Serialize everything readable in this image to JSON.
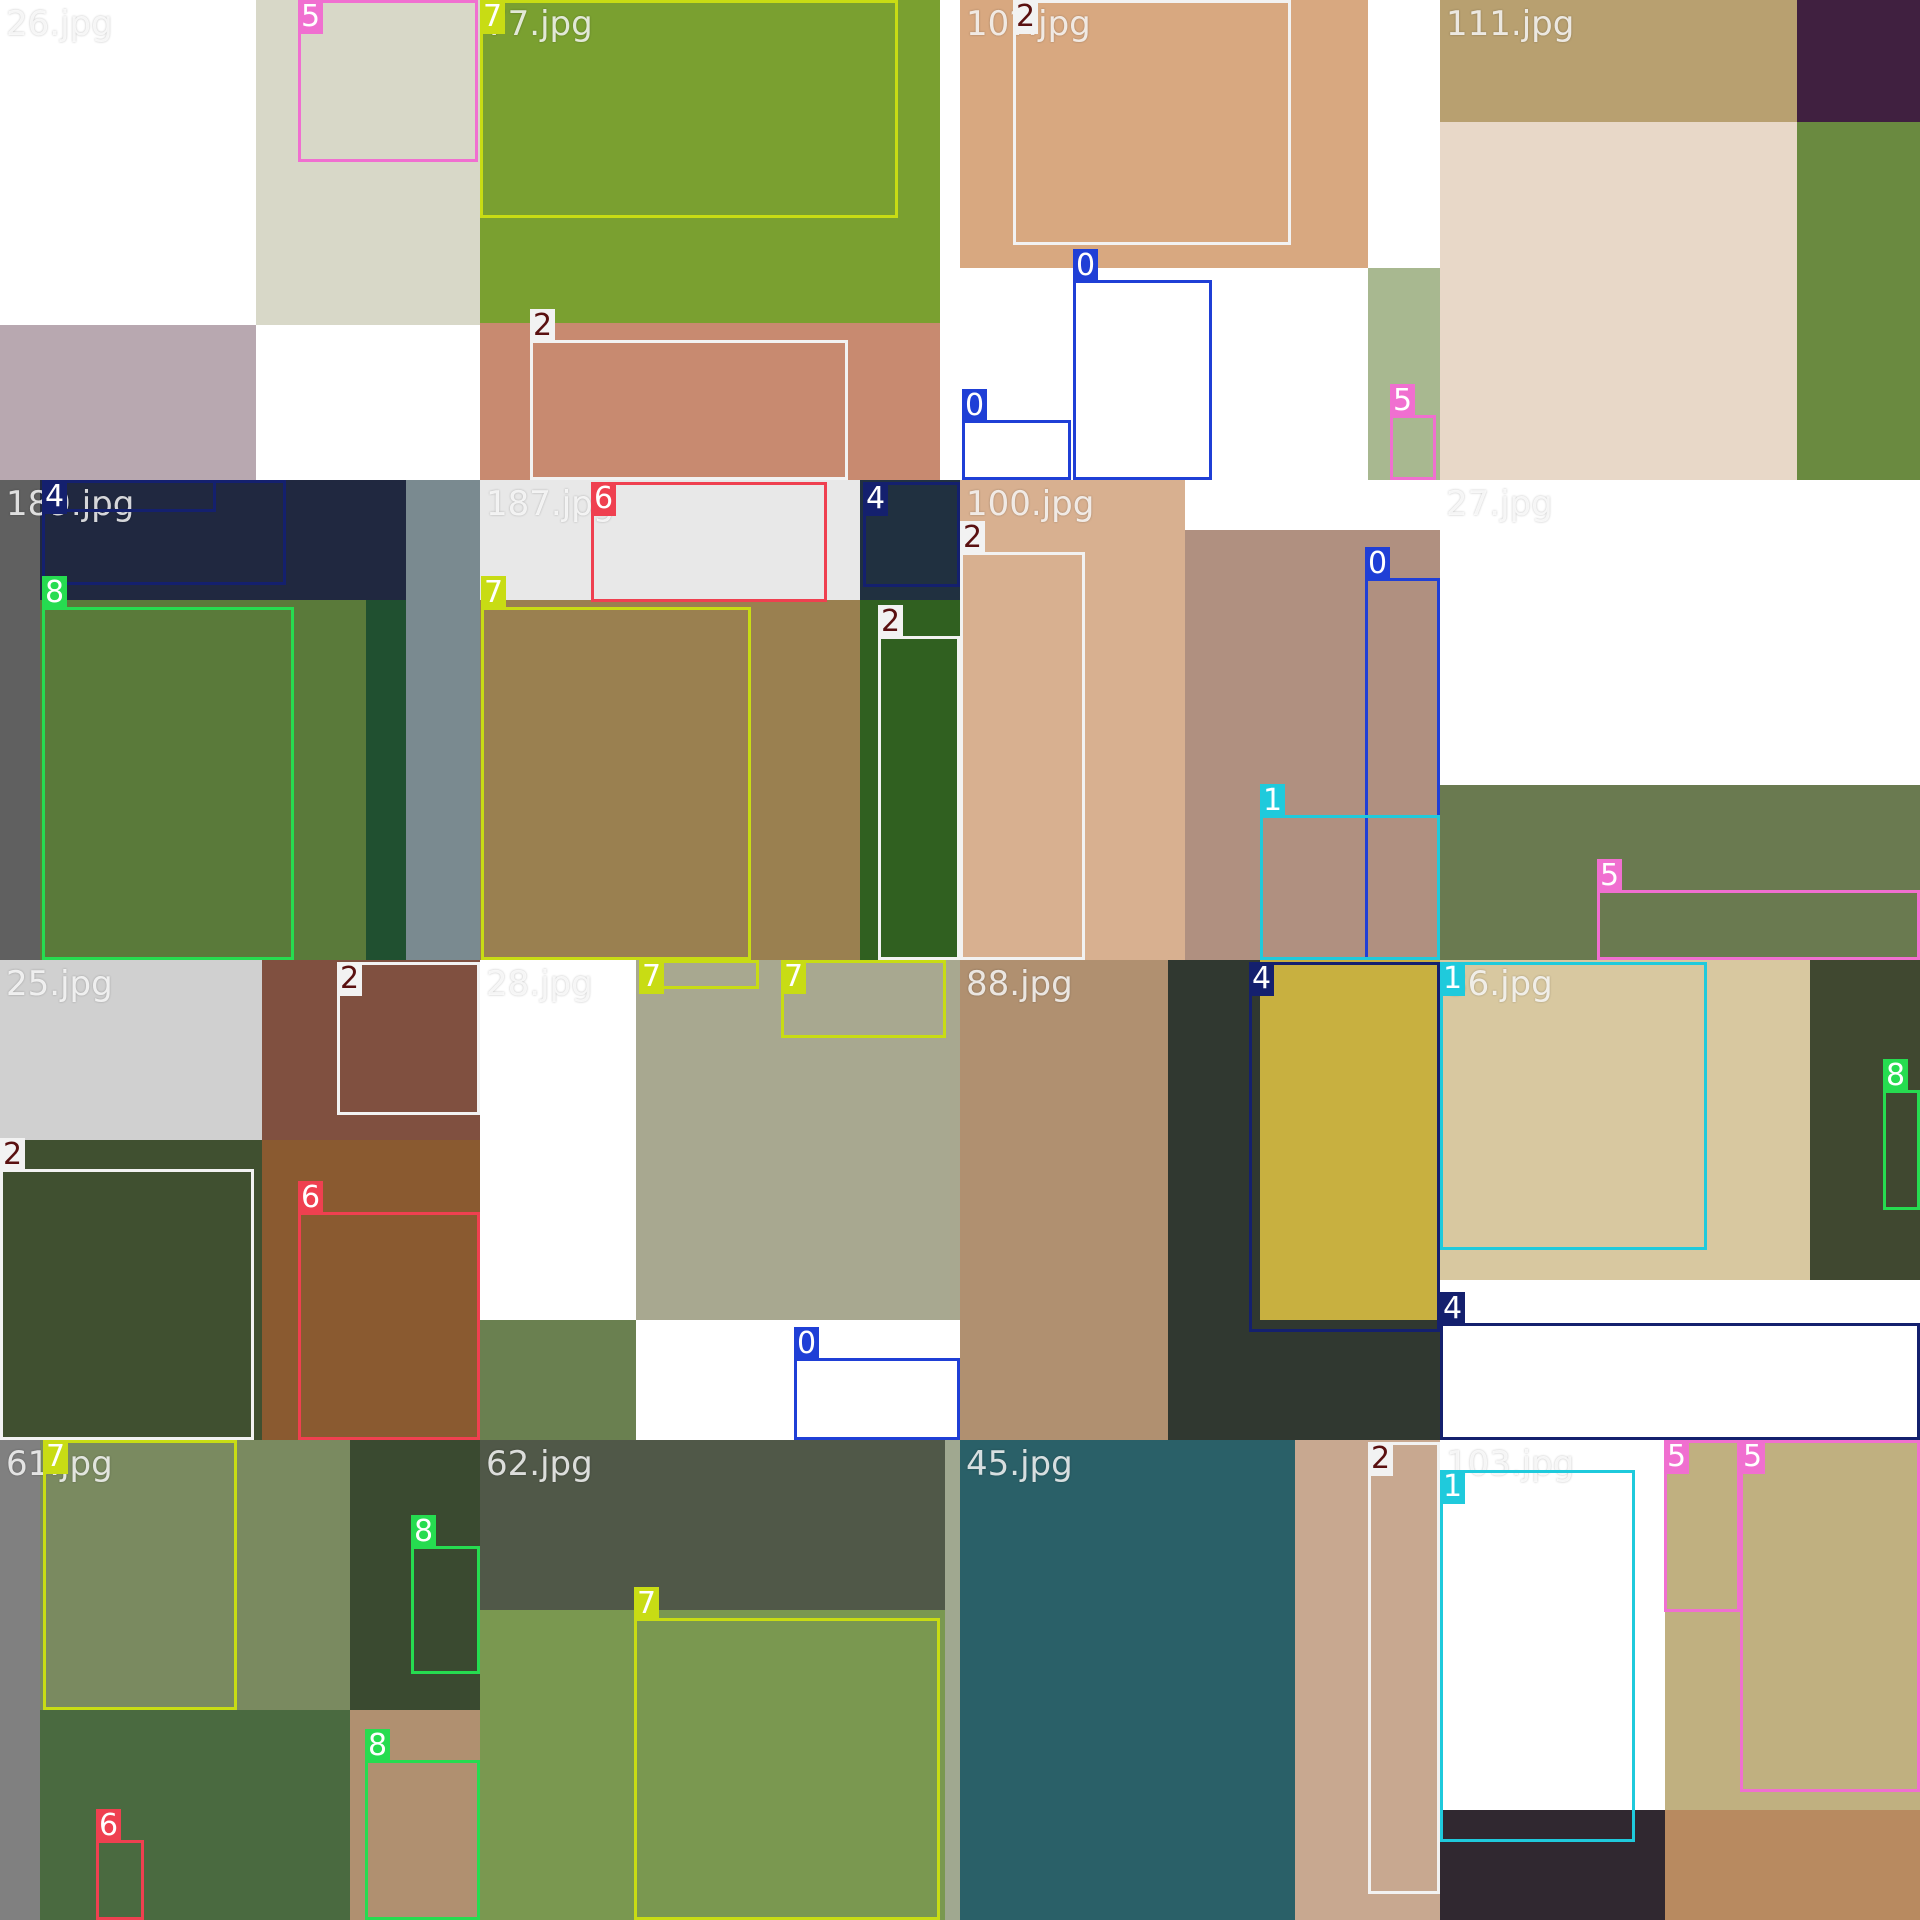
{
  "class_colors": {
    "0": "#1f3fd6",
    "1": "#1fcadc",
    "2": "#f2f2f2",
    "4": "#14206e",
    "5": "#f06fd0",
    "6": "#ef4050",
    "7": "#c8dc14",
    "8": "#26dc50"
  },
  "label_text_colors": {
    "2": "#5a1010"
  },
  "tiles": [
    {
      "title": "26.jpg"
    },
    {
      "title": "77.jpg"
    },
    {
      "title": "10?.jpg"
    },
    {
      "title": "111.jpg"
    },
    {
      "title": "189.jpg"
    },
    {
      "title": "187.jpg"
    },
    {
      "title": "100.jpg"
    },
    {
      "title": "27.jpg"
    },
    {
      "title": "25.jpg"
    },
    {
      "title": "28.jpg"
    },
    {
      "title": "88.jpg"
    },
    {
      "title": "36.jpg"
    },
    {
      "title": "61.jpg"
    },
    {
      "title": "62.jpg"
    },
    {
      "title": "45.jpg"
    },
    {
      "title": "103.jpg"
    }
  ],
  "tile_regions": [
    [
      {
        "color": "#ffffff"
      },
      {
        "color": "#d8d8c8"
      },
      {
        "color": "#b8a8b0"
      },
      {
        "color": "#ffffff"
      }
    ],
    [
      {
        "color": "#7aa030"
      },
      {
        "color": "#c88a70"
      }
    ],
    [
      {
        "color": "#d8a880"
      },
      {
        "color": "#ffffff"
      },
      {
        "color": "#a8b890"
      }
    ],
    [
      {
        "color": "#b8a070"
      },
      {
        "color": "#402040"
      },
      {
        "color": "#e8d8c8"
      },
      {
        "color": "#6a8a40"
      }
    ],
    [
      {
        "color": "#606060"
      },
      {
        "color": "#202840"
      },
      {
        "color": "#7a8a90"
      },
      {
        "color": "#5a7a3a"
      },
      {
        "color": "#205030"
      }
    ],
    [
      {
        "color": "#e8e8e8"
      },
      {
        "color": "#9a8050"
      },
      {
        "color": "#203040"
      },
      {
        "color": "#306020"
      }
    ],
    [
      {
        "color": "#d8b090"
      },
      {
        "color": "#ffffff"
      },
      {
        "color": "#b09080"
      }
    ],
    [
      {
        "color": "#ffffff"
      },
      {
        "color": "#6a7a50"
      }
    ],
    [
      {
        "color": "#d0d0d0"
      },
      {
        "color": "#805040"
      },
      {
        "color": "#405030"
      },
      {
        "color": "#8a5a30"
      }
    ],
    [
      {
        "color": "#ffffff"
      },
      {
        "color": "#a8a890"
      },
      {
        "color": "#6a8050"
      }
    ],
    [
      {
        "color": "#b09070"
      },
      {
        "color": "#303830"
      },
      {
        "color": "#c8b040"
      }
    ],
    [
      {
        "color": "#d8c8a0"
      },
      {
        "color": "#404830"
      },
      {
        "color": "#ffffff"
      }
    ],
    [
      {
        "color": "#808080"
      },
      {
        "color": "#7a8a60"
      },
      {
        "color": "#3a4a30"
      },
      {
        "color": "#4a6a40"
      },
      {
        "color": "#b09070"
      }
    ],
    [
      {
        "color": "#505848"
      },
      {
        "color": "#7a9850"
      },
      {
        "color": "#a0a890"
      }
    ],
    [
      {
        "color": "#2a6068"
      },
      {
        "color": "#c8a890"
      }
    ],
    [
      {
        "color": "#ffffff"
      },
      {
        "color": "#c0b080"
      },
      {
        "color": "#302830"
      },
      {
        "color": "#b88a60"
      }
    ]
  ],
  "detections": [
    [
      {
        "label": "5",
        "cls": "5"
      }
    ],
    [
      {
        "label": "7",
        "cls": "7"
      },
      {
        "label": "2",
        "cls": "2"
      }
    ],
    [
      {
        "label": "2",
        "cls": "2"
      },
      {
        "label": "0",
        "cls": "0"
      },
      {
        "label": "0",
        "cls": "0"
      },
      {
        "label": "5",
        "cls": "5"
      }
    ],
    [],
    [
      {
        "label": "4",
        "cls": "4"
      },
      {
        "label": "4",
        "cls": "4"
      },
      {
        "label": "8",
        "cls": "8"
      }
    ],
    [
      {
        "label": "6",
        "cls": "6"
      },
      {
        "label": "4",
        "cls": "4"
      },
      {
        "label": "7",
        "cls": "7"
      },
      {
        "label": "2",
        "cls": "2"
      }
    ],
    [
      {
        "label": "2",
        "cls": "2"
      },
      {
        "label": "0",
        "cls": "0"
      },
      {
        "label": "1",
        "cls": "1"
      }
    ],
    [
      {
        "label": "5",
        "cls": "5"
      }
    ],
    [
      {
        "label": "2",
        "cls": "2"
      },
      {
        "label": "2",
        "cls": "2"
      },
      {
        "label": "6",
        "cls": "6"
      }
    ],
    [
      {
        "label": "7",
        "cls": "7"
      },
      {
        "label": "7",
        "cls": "7"
      },
      {
        "label": "0",
        "cls": "0"
      }
    ],
    [
      {
        "label": "4",
        "cls": "4"
      }
    ],
    [
      {
        "label": "1",
        "cls": "1"
      },
      {
        "label": "8",
        "cls": "8"
      },
      {
        "label": "4",
        "cls": "4"
      }
    ],
    [
      {
        "label": "7",
        "cls": "7"
      },
      {
        "label": "8",
        "cls": "8"
      },
      {
        "label": "6",
        "cls": "6"
      },
      {
        "label": "8",
        "cls": "8"
      }
    ],
    [
      {
        "label": "7",
        "cls": "7"
      }
    ],
    [
      {
        "label": "2",
        "cls": "2"
      }
    ],
    [
      {
        "label": "1",
        "cls": "1"
      },
      {
        "label": "5",
        "cls": "5"
      },
      {
        "label": "5",
        "cls": "5"
      }
    ]
  ]
}
